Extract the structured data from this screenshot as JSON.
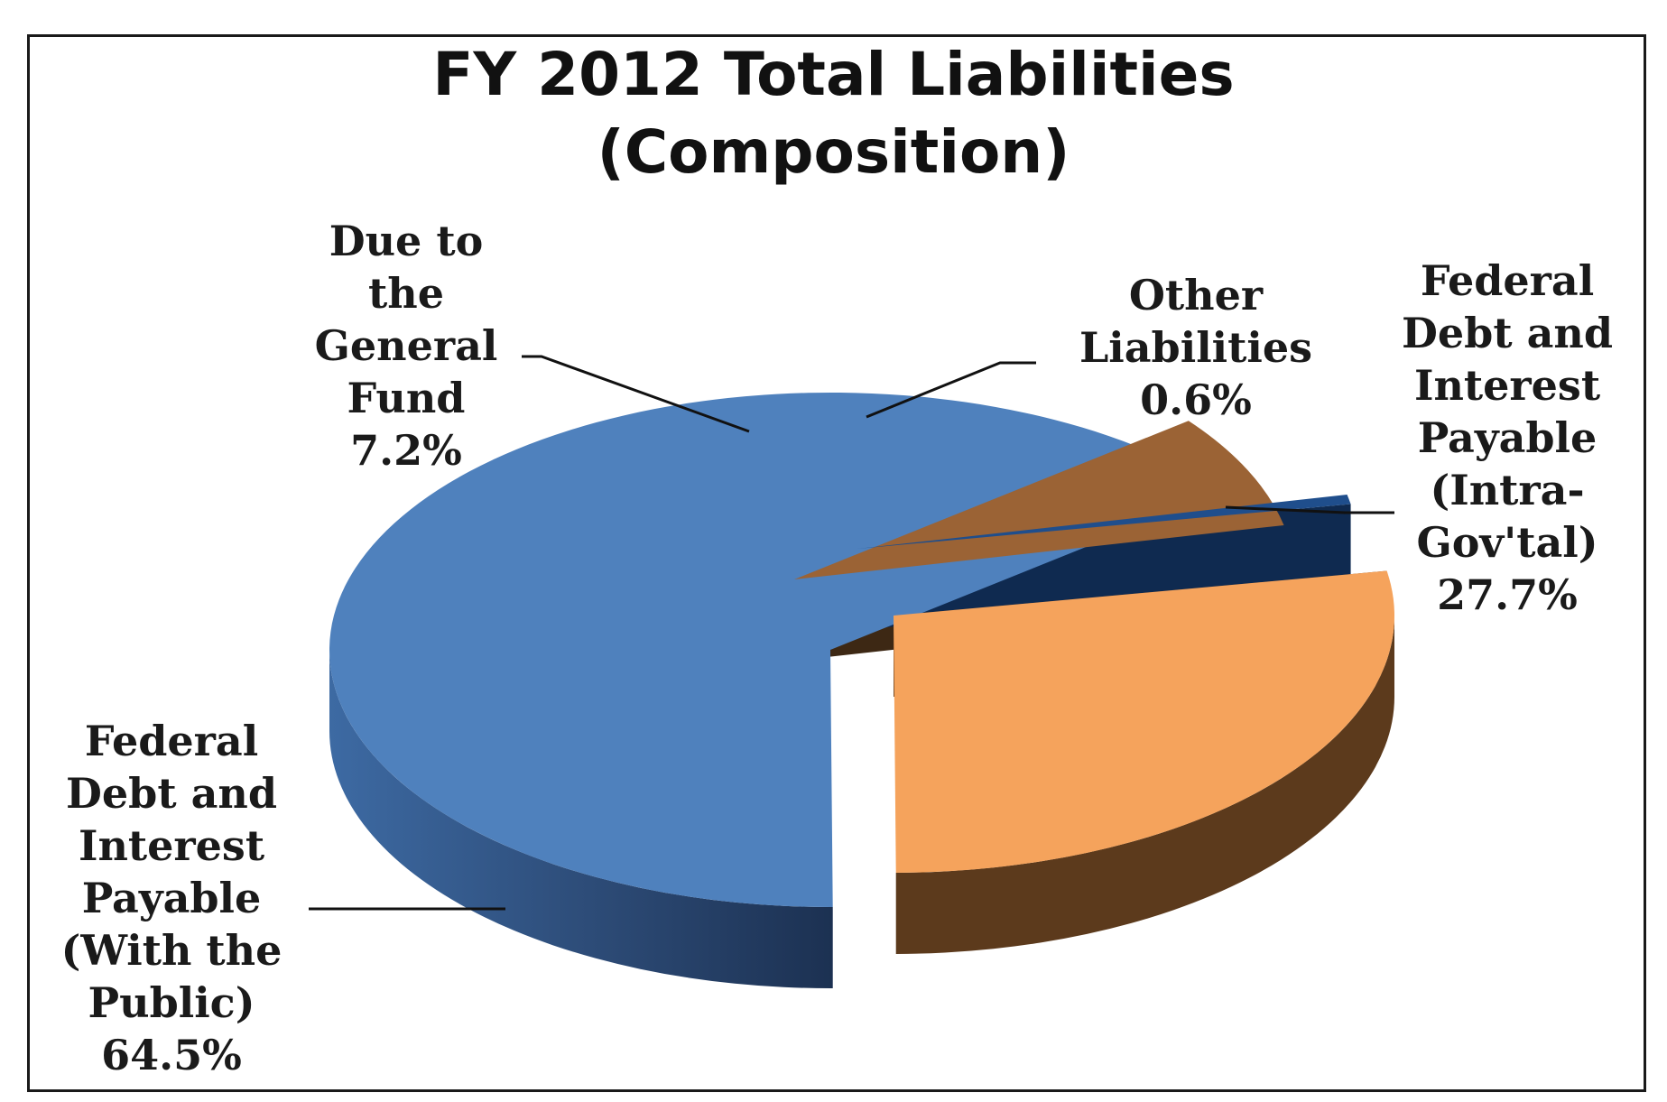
{
  "chart_data": {
    "type": "pie",
    "title": "FY 2012 Total Liabilities",
    "subtitle": "(Composition)",
    "style": "3d-exploded",
    "slices": [
      {
        "key": "intra",
        "label_lines": [
          "Federal",
          "Debt and",
          "Interest",
          "Payable",
          "(Intra-",
          "Gov'tal)"
        ],
        "value_label": "27.7%",
        "value": 27.7,
        "color_top": "#f5a35c",
        "color_side": "#5c3a1c",
        "exploded": true
      },
      {
        "key": "public",
        "label_lines": [
          "Federal",
          "Debt and",
          "Interest",
          "Payable",
          "(With the",
          "Public)"
        ],
        "value_label": "64.5%",
        "value": 64.5,
        "color_top": "#4f81bd",
        "color_side": "#2f4f7c",
        "exploded": false
      },
      {
        "key": "general",
        "label_lines": [
          "Due to",
          "the",
          "General",
          "Fund"
        ],
        "value_label": "7.2%",
        "value": 7.2,
        "color_top": "#9b6335",
        "color_side": "#3d2814",
        "exploded": true
      },
      {
        "key": "other",
        "label_lines": [
          "Other",
          "Liabilities"
        ],
        "value_label": "0.6%",
        "value": 0.6,
        "color_top": "#1f4e8c",
        "color_side": "#0f2a50",
        "exploded": true
      }
    ]
  }
}
